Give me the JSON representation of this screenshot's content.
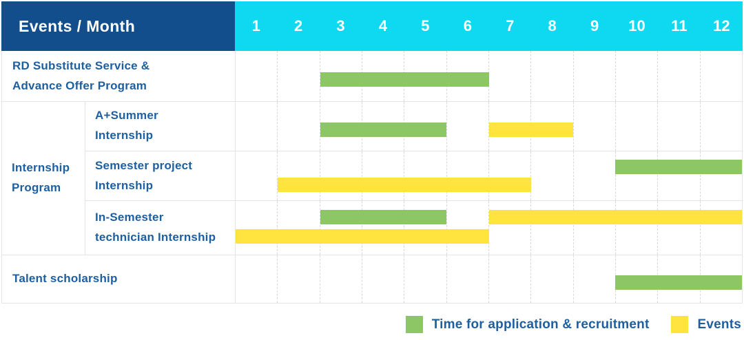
{
  "colors": {
    "header_bg": "#114e8b",
    "months_bg": "#0fd8f1",
    "header_text": "#ffffff",
    "label_text": "#1d5fa0",
    "application": "#8cc665",
    "events": "#ffe33f",
    "grid_line": "#d9d9d9"
  },
  "header": {
    "corner_label": "Events / Month",
    "months": [
      "1",
      "2",
      "3",
      "4",
      "5",
      "6",
      "7",
      "8",
      "9",
      "10",
      "11",
      "12"
    ]
  },
  "legend": {
    "items": [
      {
        "label": "Time for application & recruitment",
        "color_key": "application"
      },
      {
        "label": "Events",
        "color_key": "events"
      }
    ]
  },
  "chart_data": {
    "type": "table",
    "subtype": "gantt",
    "title": "Events / Month",
    "x_axis": {
      "label": "Month",
      "ticks": [
        1,
        2,
        3,
        4,
        5,
        6,
        7,
        8,
        9,
        10,
        11,
        12
      ],
      "range": [
        1,
        13
      ]
    },
    "legend": [
      "Time for application & recruitment",
      "Events"
    ],
    "rows": [
      {
        "group": "",
        "label": "RD Substitute Service & Advance Offer Program",
        "label_lines": [
          "RD Substitute Service &",
          "Advance Offer Program"
        ],
        "bars": [
          {
            "series": "Time for application & recruitment",
            "color_key": "application",
            "start_month": 3,
            "end_month": 6,
            "from": 3,
            "to": 7,
            "line": "center"
          }
        ]
      },
      {
        "group": "Internship Program",
        "label": "A+Summer Internship",
        "label_lines": [
          "A+Summer",
          "Internship"
        ],
        "bars": [
          {
            "series": "Time for application & recruitment",
            "color_key": "application",
            "start_month": 3,
            "end_month": 5,
            "from": 3,
            "to": 6,
            "line": "center"
          },
          {
            "series": "Events",
            "color_key": "events",
            "start_month": 7,
            "end_month": 8,
            "from": 7,
            "to": 9,
            "line": "center"
          }
        ]
      },
      {
        "group": "Internship Program",
        "label": "Semester project Internship",
        "label_lines": [
          "Semester project",
          "Internship"
        ],
        "bars": [
          {
            "series": "Time for application & recruitment",
            "color_key": "application",
            "start_month": 10,
            "end_month": 12,
            "from": 10,
            "to": 13,
            "line": "top"
          },
          {
            "series": "Events",
            "color_key": "events",
            "start_month": 2,
            "end_month": 7,
            "from": 2,
            "to": 8,
            "line": "bottom"
          }
        ]
      },
      {
        "group": "Internship Program",
        "label": "In-Semester technician Internship",
        "label_lines": [
          "In-Semester",
          "technician Internship"
        ],
        "bars": [
          {
            "series": "Time for application & recruitment",
            "color_key": "application",
            "start_month": 3,
            "end_month": 5,
            "from": 3,
            "to": 6,
            "line": "top"
          },
          {
            "series": "Events",
            "color_key": "events",
            "start_month": 7,
            "end_month": 12,
            "from": 7,
            "to": 13,
            "line": "top"
          },
          {
            "series": "Events",
            "color_key": "events",
            "start_month": 1,
            "end_month": 6,
            "from": 1,
            "to": 7,
            "line": "bottom"
          }
        ]
      },
      {
        "group": "",
        "label": "Talent scholarship",
        "label_lines": [
          "Talent scholarship"
        ],
        "bars": [
          {
            "series": "Time for application & recruitment",
            "color_key": "application",
            "start_month": 10,
            "end_month": 12,
            "from": 10,
            "to": 13,
            "line": "center"
          }
        ]
      }
    ]
  }
}
